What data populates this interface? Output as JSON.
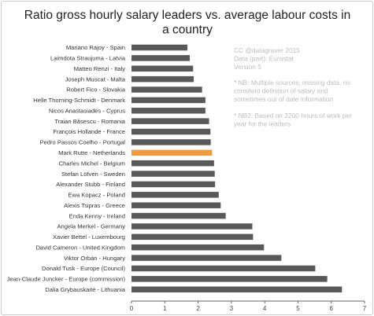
{
  "chart_data": {
    "type": "bar",
    "orientation": "horizontal",
    "title_lines": [
      "Ratio gross hourly salary leaders vs. average labour costs in",
      "a country"
    ],
    "categories": [
      "Mariano Rajoy - Spain",
      "Laimdota Straujuma - Latvia",
      "Matteo Renzi - Italy",
      "Joseph Muscat - Malta",
      "Robert Fico - Slovakia",
      "Helle Thorning-Schmidt - Denmark",
      "Nicos Anastasiades - Cyprus",
      "Traian Băsescu - Romania",
      "François Hollande - France",
      "Pedro Passos Coelho - Portugal",
      "Mark Rutte - Netherlands",
      "Charles Michel - Belgium",
      "Stefan Löfven - Sweden",
      "Alexander Stubb - Finland",
      "Ewa Kopacz - Poland",
      "Alexis Tsipras - Greece",
      "Enda Kenny - Ireland",
      "Angela Merkel - Germany",
      "Xavier Bettel - Luxembourg",
      "David Cameron - United Kingdom",
      "Viktor Orbán - Hungary",
      "Donald Tusk - Europe (Council)",
      "Jean-Claude Juncker - Europe (commission)",
      "Dalia Grybauskaitė - Lithuania"
    ],
    "values": [
      1.68,
      1.75,
      1.85,
      1.87,
      2.12,
      2.22,
      2.22,
      2.33,
      2.37,
      2.38,
      2.42,
      2.48,
      2.5,
      2.51,
      2.62,
      2.68,
      2.83,
      3.63,
      3.65,
      3.98,
      4.5,
      5.52,
      5.88,
      6.32
    ],
    "highlight_index": 10,
    "xlim": [
      0,
      7
    ],
    "xticks": [
      0,
      1,
      2,
      3,
      4,
      5,
      6,
      7
    ],
    "grid": false,
    "annotations": [
      [
        "CC @datagraver 2015",
        "Data (part): Eurostat",
        "Version 5"
      ],
      [
        "* NB: Multiple sources, missing data, no",
        "consitent definition of salary and",
        "sometimes out of date information"
      ],
      [
        "* NB2: Based on 2200 hours of work per",
        "year for the leaders"
      ]
    ],
    "colors": {
      "bar": "#595959",
      "highlight": "#f39a3d",
      "axis": "#666666",
      "annotation": "#bdbdbd"
    }
  }
}
